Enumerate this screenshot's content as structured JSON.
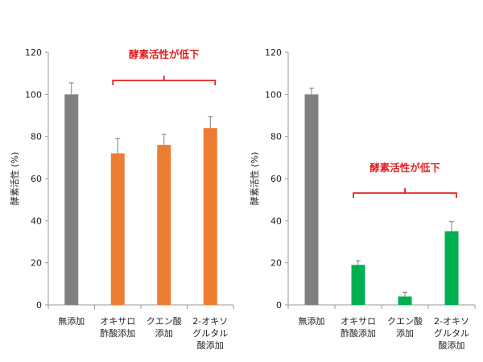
{
  "chart_data": [
    {
      "type": "bar",
      "ylabel": "酵素活性 (%)",
      "ylim": [
        0,
        120
      ],
      "yticks": [
        "0",
        "20",
        "40",
        "60",
        "80",
        "100",
        "120"
      ],
      "grid": false,
      "categories": [
        [
          "無添加"
        ],
        [
          "オキサロ",
          "酢酸添加"
        ],
        [
          "クエン酸",
          "添加"
        ],
        [
          "2-オキソ",
          "グルタル",
          "酸添加"
        ]
      ],
      "values": [
        100,
        72,
        76,
        84
      ],
      "errors": [
        5.5,
        7,
        5,
        5.5
      ],
      "colors": [
        "#808080",
        "#ed7d31",
        "#ed7d31",
        "#ed7d31"
      ],
      "annotation": {
        "text": "酵素活性が低下",
        "color": "#e02020",
        "from_index": 1,
        "to_index": 3
      }
    },
    {
      "type": "bar",
      "ylabel": "酵素活性 (%)",
      "ylim": [
        0,
        120
      ],
      "yticks": [
        "0",
        "20",
        "40",
        "60",
        "80",
        "100",
        "120"
      ],
      "grid": false,
      "categories": [
        [
          "無添加"
        ],
        [
          "オキサロ",
          "酢酸添加"
        ],
        [
          "クエン酸",
          "添加"
        ],
        [
          "2-オキソ",
          "グルタル",
          "酸添加"
        ]
      ],
      "values": [
        100,
        19,
        4,
        35
      ],
      "errors": [
        3,
        2,
        2,
        4.5
      ],
      "colors": [
        "#808080",
        "#00b050",
        "#00b050",
        "#00b050"
      ],
      "annotation": {
        "text": "酵素活性が低下",
        "color": "#e02020",
        "from_index": 1,
        "to_index": 3
      }
    }
  ]
}
